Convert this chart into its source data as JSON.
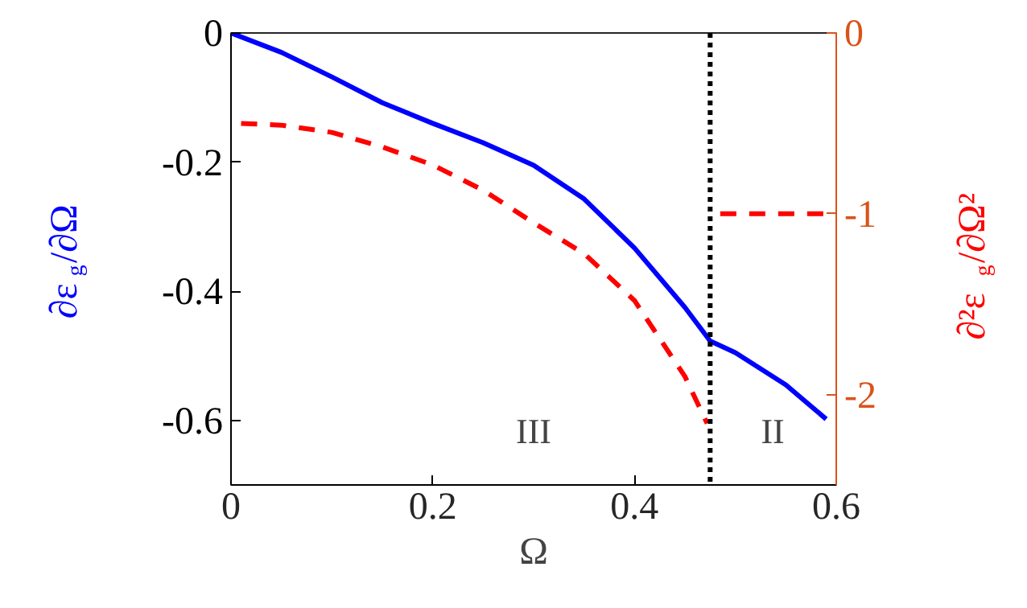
{
  "chart_data": {
    "type": "line",
    "xlabel": "Ω",
    "ylabel": "∂ε$_{g}$/∂Ω",
    "y2label": "∂²ε$_{g}$/∂Ω²",
    "xlim": [
      0,
      0.6
    ],
    "xticks": [
      0,
      0.2,
      0.4,
      0.6
    ],
    "ylim": [
      -0.7,
      0
    ],
    "yticks": [
      0,
      -0.2,
      -0.4,
      -0.6
    ],
    "y2lim": [
      -2.5,
      0
    ],
    "y2ticks": [
      0,
      -1,
      -2
    ],
    "grid": false,
    "series": [
      {
        "color": "#0000ff",
        "line_style": "solid",
        "x": [
          0,
          0.05,
          0.1,
          0.15,
          0.2,
          0.25,
          0.3,
          0.35,
          0.4,
          0.45,
          0.475,
          0.5,
          0.55,
          0.59
        ],
        "values": [
          0,
          -0.03,
          -0.068,
          -0.108,
          -0.14,
          -0.17,
          -0.205,
          -0.257,
          -0.333,
          -0.425,
          -0.477,
          -0.495,
          -0.545,
          -0.598
        ]
      },
      {
        "color": "#ff0000",
        "line_style": "dashed",
        "axis": "y2",
        "x": [
          0.01,
          0.05,
          0.1,
          0.15,
          0.2,
          0.25,
          0.3,
          0.35,
          0.4,
          0.45,
          0.472,
          0.48,
          0.485,
          0.59
        ],
        "values": [
          -0.5,
          -0.51,
          -0.55,
          -0.63,
          -0.73,
          -0.87,
          -1.05,
          -1.22,
          -1.48,
          -1.9,
          -2.16,
          null,
          -1,
          -1
        ]
      }
    ],
    "ref_lines": [
      {
        "axis": "x",
        "value": 0.475,
        "color": "#000000",
        "line_style": "dotted"
      }
    ],
    "annotations": [
      "III",
      "II"
    ]
  }
}
